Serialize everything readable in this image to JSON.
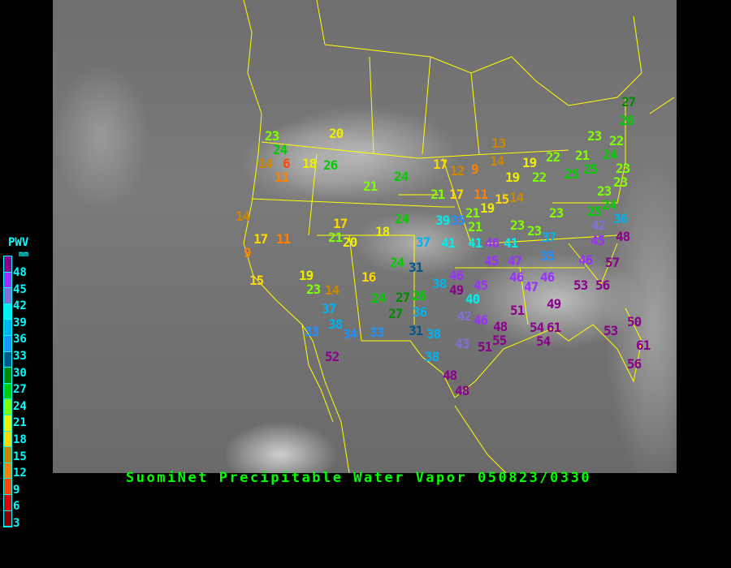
{
  "title": "SuomiNet Precipitable Water Vapor 050823/0330",
  "legend": {
    "title": "PWV",
    "unit": "mm",
    "labels": [
      "48",
      "45",
      "42",
      "39",
      "36",
      "33",
      "30",
      "27",
      "24",
      "21",
      "18",
      "15",
      "12",
      "9",
      "6",
      "3"
    ],
    "colors": [
      "#8b008b",
      "#9b30ff",
      "#8470d8",
      "#00eeee",
      "#00b2ee",
      "#1e90ff",
      "#00578b",
      "#008b00",
      "#00cd00",
      "#7fff00",
      "#eeee00",
      "#ffd700",
      "#cd8500",
      "#ff8000",
      "#ff4500",
      "#dd0000",
      "#8b0000"
    ]
  },
  "line_color": "#ffff00",
  "stations": [
    "23",
    "24",
    "14",
    "6",
    "18",
    "26",
    "11",
    "20",
    "21",
    "24",
    "17",
    "12",
    "9",
    "21",
    "17",
    "11",
    "14",
    "24",
    "39",
    "35",
    "21",
    "17",
    "21",
    "20",
    "18",
    "17",
    "11",
    "37",
    "41",
    "41",
    "9",
    "13",
    "14",
    "19",
    "19",
    "22",
    "22",
    "21",
    "24",
    "23",
    "22",
    "27",
    "26",
    "25",
    "25",
    "23",
    "23",
    "15",
    "14",
    "19",
    "21",
    "23",
    "23",
    "37",
    "23",
    "23",
    "24",
    "25",
    "42",
    "36",
    "45",
    "48",
    "46",
    "41",
    "45",
    "47",
    "35",
    "46",
    "46",
    "47",
    "46",
    "57",
    "53",
    "56",
    "49",
    "51",
    "48",
    "55",
    "54",
    "61",
    "54",
    "53",
    "50",
    "61",
    "56",
    "15",
    "19",
    "23",
    "14",
    "16",
    "24",
    "31",
    "46",
    "38",
    "49",
    "45",
    "24",
    "27",
    "26",
    "37",
    "27",
    "36",
    "40",
    "42",
    "46",
    "38",
    "33",
    "34",
    "33",
    "31",
    "38",
    "43",
    "51",
    "52",
    "38",
    "48",
    "48"
  ]
}
